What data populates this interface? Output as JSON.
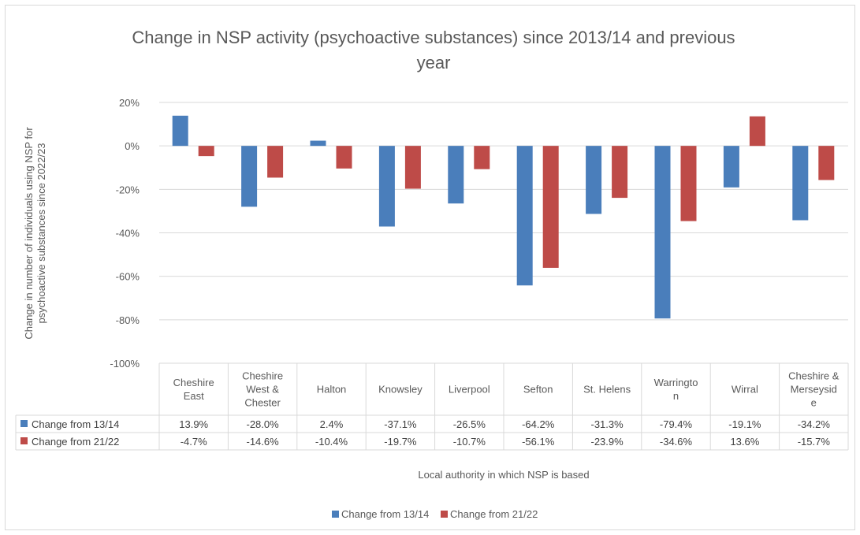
{
  "chart_data": {
    "type": "bar",
    "title": "Change in NSP activity (psychoactive substances) since 2013/14 and previous year",
    "title_lines": [
      "Change in NSP activity (psychoactive substances) since 2013/14 and previous",
      "year"
    ],
    "ylabel": "Change in number of individuals using NSP for psychoactive substances since 2022/23",
    "ylabel_lines": [
      "Change in number of individuals using NSP for",
      "psychoactive substances since 2022/23"
    ],
    "xlabel": "Local authority in which NSP is based",
    "ylim": [
      -1.0,
      0.2
    ],
    "yticks": [
      0.2,
      0,
      -0.2,
      -0.4,
      -0.6,
      -0.8,
      -1.0
    ],
    "ytick_labels": [
      "20%",
      "0%",
      "-20%",
      "-40%",
      "-60%",
      "-80%",
      "-100%"
    ],
    "categories": [
      "Cheshire East",
      "Cheshire West & Chester",
      "Halton",
      "Knowsley",
      "Liverpool",
      "Sefton",
      "St. Helens",
      "Warrington",
      "Wirral",
      "Cheshire & Merseyside"
    ],
    "category_lines": [
      [
        "Cheshire",
        "East"
      ],
      [
        "Cheshire",
        "West &",
        "Chester"
      ],
      [
        "Halton"
      ],
      [
        "Knowsley"
      ],
      [
        "Liverpool"
      ],
      [
        "Sefton"
      ],
      [
        "St. Helens"
      ],
      [
        "Warringto",
        "n"
      ],
      [
        "Wirral"
      ],
      [
        "Cheshire &",
        "Merseysid",
        "e"
      ]
    ],
    "series": [
      {
        "name": "Change from 13/14",
        "color": "#4a7ebb",
        "values": [
          0.139,
          -0.28,
          0.024,
          -0.371,
          -0.265,
          -0.642,
          -0.313,
          -0.794,
          -0.191,
          -0.342
        ],
        "labels": [
          "13.9%",
          "-28.0%",
          "2.4%",
          "-37.1%",
          "-26.5%",
          "-64.2%",
          "-31.3%",
          "-79.4%",
          "-19.1%",
          "-34.2%"
        ]
      },
      {
        "name": "Change from 21/22",
        "color": "#be4b48",
        "values": [
          -0.047,
          -0.146,
          -0.104,
          -0.197,
          -0.107,
          -0.561,
          -0.239,
          -0.346,
          0.136,
          -0.157
        ],
        "labels": [
          "-4.7%",
          "-14.6%",
          "-10.4%",
          "-19.7%",
          "-10.7%",
          "-56.1%",
          "-23.9%",
          "-34.6%",
          "13.6%",
          "-15.7%"
        ]
      }
    ],
    "legend": "bottom",
    "grid": true,
    "data_table": true
  }
}
